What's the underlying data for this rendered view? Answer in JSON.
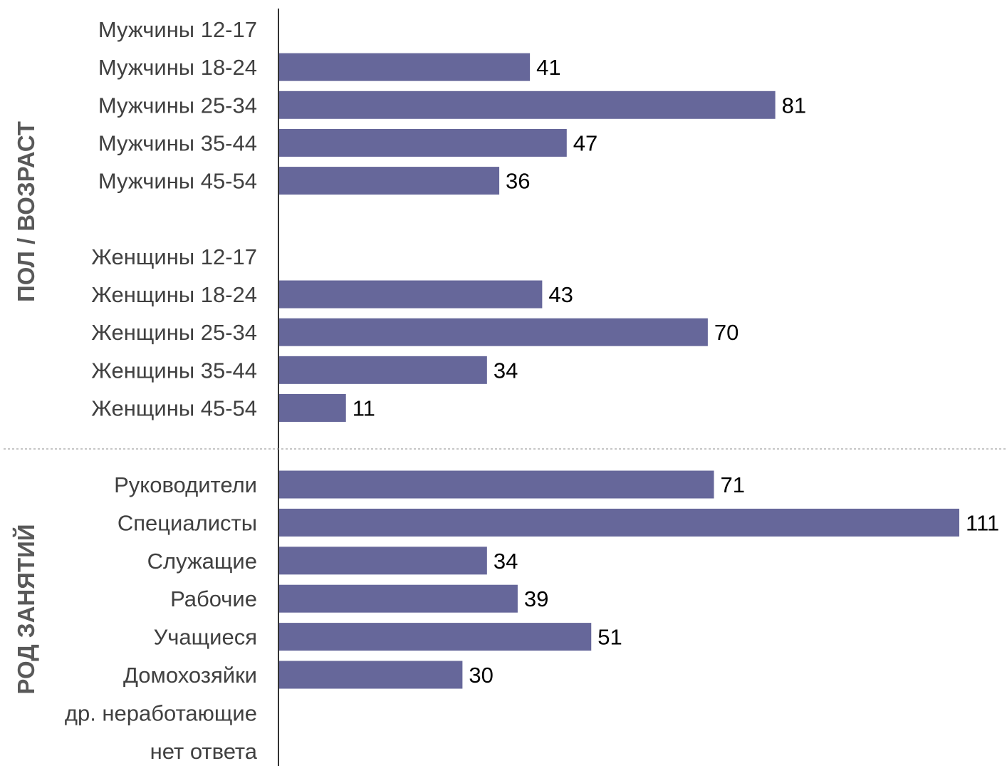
{
  "chart_data": {
    "type": "bar",
    "orientation": "horizontal",
    "bar_color": "#66679a",
    "groups": [
      {
        "label": "ПОЛ / ВОЗРАСТ",
        "categories": [
          "Мужчины 12-17",
          "Мужчины 18-24",
          "Мужчины 25-34",
          "Мужчины 35-44",
          "Мужчины 45-54",
          "",
          "Женщины 12-17",
          "Женщины 18-24",
          "Женщины 25-34",
          "Женщины 35-44",
          "Женщины 45-54"
        ],
        "values": [
          null,
          41,
          81,
          47,
          36,
          null,
          null,
          43,
          70,
          34,
          11
        ]
      },
      {
        "label": "РОД ЗАНЯТИЙ",
        "categories": [
          "Руководители",
          "Специалисты",
          "Служащие",
          "Рабочие",
          "Учащиеся",
          "Домохозяйки",
          "др. неработающие",
          "нет ответа"
        ],
        "values": [
          71,
          111,
          34,
          39,
          51,
          30,
          null,
          null
        ]
      }
    ],
    "xlim": [
      0,
      111
    ],
    "grid": false,
    "legend": "none"
  }
}
